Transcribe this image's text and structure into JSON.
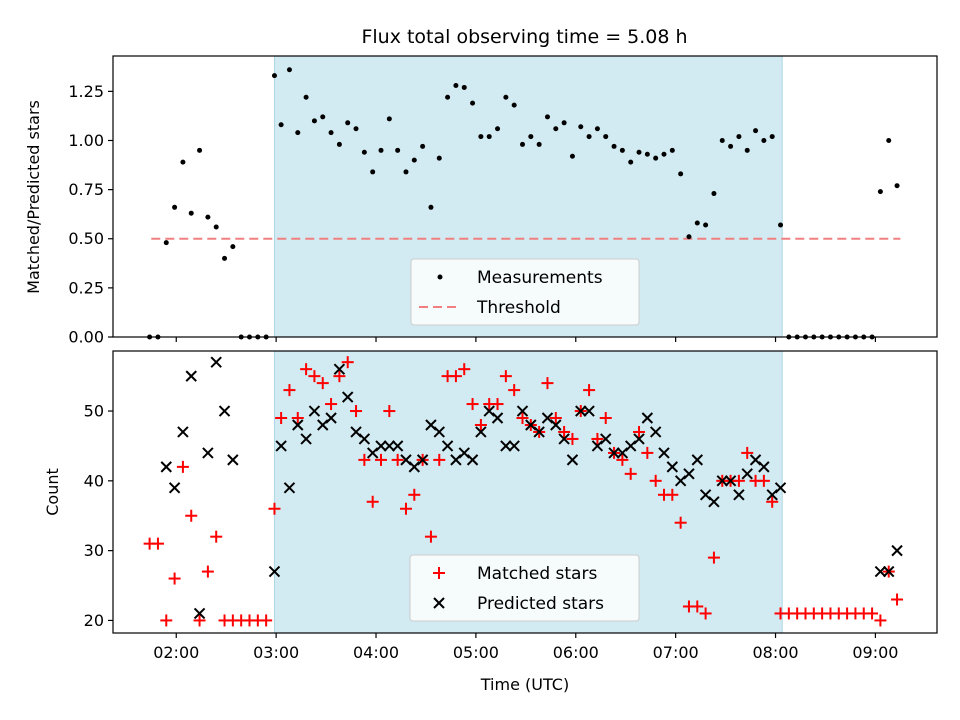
{
  "figure": {
    "title": "Flux total observing time = 5.08 h"
  },
  "colors": {
    "shade": "#add8e6",
    "measurement": "#000000",
    "threshold": "#f08080",
    "matched": "#ff0000",
    "predicted": "#000000"
  },
  "chart_data": [
    {
      "type": "scatter",
      "panel": "top",
      "ylabel": "Matched/Predicted stars",
      "xlabel": "",
      "xlim": [
        "01:22",
        "09:37"
      ],
      "ylim": [
        0,
        1.43
      ],
      "yticks": [
        0.0,
        0.25,
        0.5,
        0.75,
        1.0,
        1.25
      ],
      "ytick_labels": [
        "0.00",
        "0.25",
        "0.50",
        "0.75",
        "1.00",
        "1.25"
      ],
      "shaded_span": [
        "02:59",
        "08:04"
      ],
      "legend": {
        "position": "lower center",
        "entries": [
          "Measurements",
          "Threshold"
        ]
      },
      "threshold": {
        "name": "Threshold",
        "x": [
          "01:45",
          "09:15"
        ],
        "y": 0.5,
        "style": "dashed"
      },
      "series": [
        {
          "name": "Measurements",
          "marker": "dot",
          "x": [
            "01:44",
            "01:49",
            "01:54",
            "01:59",
            "02:04",
            "02:09",
            "02:14",
            "02:19",
            "02:24",
            "02:29",
            "02:34",
            "02:39",
            "02:44",
            "02:49",
            "02:54",
            "02:59",
            "03:03",
            "03:08",
            "03:13",
            "03:18",
            "03:23",
            "03:28",
            "03:33",
            "03:38",
            "03:43",
            "03:48",
            "03:53",
            "03:58",
            "04:03",
            "04:08",
            "04:13",
            "04:18",
            "04:23",
            "04:28",
            "04:33",
            "04:38",
            "04:43",
            "04:48",
            "04:53",
            "04:58",
            "05:03",
            "05:08",
            "05:13",
            "05:18",
            "05:23",
            "05:28",
            "05:33",
            "05:38",
            "05:43",
            "05:48",
            "05:53",
            "05:58",
            "06:03",
            "06:08",
            "06:13",
            "06:18",
            "06:23",
            "06:28",
            "06:33",
            "06:38",
            "06:43",
            "06:48",
            "06:53",
            "06:58",
            "07:03",
            "07:08",
            "07:13",
            "07:18",
            "07:23",
            "07:28",
            "07:33",
            "07:38",
            "07:43",
            "07:48",
            "07:53",
            "07:58",
            "08:03",
            "08:08",
            "08:13",
            "08:18",
            "08:23",
            "08:28",
            "08:33",
            "08:38",
            "08:43",
            "08:48",
            "08:53",
            "08:58",
            "09:03",
            "09:08",
            "09:13"
          ],
          "y": [
            0.0,
            0.0,
            0.48,
            0.66,
            0.89,
            0.63,
            0.95,
            0.61,
            0.56,
            0.4,
            0.46,
            0.0,
            0.0,
            0.0,
            0.0,
            1.33,
            1.08,
            1.36,
            1.04,
            1.22,
            1.1,
            1.12,
            1.04,
            0.98,
            1.09,
            1.06,
            0.94,
            0.84,
            0.95,
            1.11,
            0.95,
            0.84,
            0.9,
            0.97,
            0.66,
            0.91,
            1.22,
            1.28,
            1.27,
            1.19,
            1.02,
            1.02,
            1.06,
            1.22,
            1.18,
            0.98,
            1.02,
            0.98,
            1.12,
            1.06,
            1.09,
            0.92,
            1.07,
            1.02,
            1.06,
            1.02,
            0.97,
            0.95,
            0.89,
            0.94,
            0.93,
            0.91,
            0.93,
            0.95,
            0.83,
            0.51,
            0.58,
            0.57,
            0.73,
            1.0,
            0.97,
            1.02,
            0.95,
            1.05,
            1.0,
            1.02,
            0.57,
            0.0,
            0.0,
            0.0,
            0.0,
            0.0,
            0.0,
            0.0,
            0.0,
            0.0,
            0.0,
            0.0,
            0.74,
            1.0,
            0.77
          ]
        }
      ]
    },
    {
      "type": "scatter",
      "panel": "bottom",
      "ylabel": "Count",
      "xlabel": "Time (UTC)",
      "xlim": [
        "01:22",
        "09:37"
      ],
      "ylim": [
        18.2,
        58.6
      ],
      "yticks": [
        20,
        30,
        40,
        50
      ],
      "xticks": [
        "02:00",
        "03:00",
        "04:00",
        "05:00",
        "06:00",
        "07:00",
        "08:00",
        "09:00"
      ],
      "shaded_span": [
        "02:59",
        "08:04"
      ],
      "legend": {
        "position": "lower center",
        "entries": [
          "Matched stars",
          "Predicted stars"
        ]
      },
      "series": [
        {
          "name": "Matched stars",
          "marker": "plus",
          "x": [
            "01:44",
            "01:49",
            "01:54",
            "01:59",
            "02:04",
            "02:09",
            "02:14",
            "02:19",
            "02:24",
            "02:29",
            "02:34",
            "02:39",
            "02:44",
            "02:49",
            "02:54",
            "02:59",
            "03:03",
            "03:08",
            "03:13",
            "03:18",
            "03:23",
            "03:28",
            "03:33",
            "03:38",
            "03:43",
            "03:48",
            "03:53",
            "03:58",
            "04:03",
            "04:08",
            "04:13",
            "04:18",
            "04:23",
            "04:28",
            "04:33",
            "04:38",
            "04:43",
            "04:48",
            "04:53",
            "04:58",
            "05:03",
            "05:08",
            "05:13",
            "05:18",
            "05:23",
            "05:28",
            "05:33",
            "05:38",
            "05:43",
            "05:48",
            "05:53",
            "05:58",
            "06:03",
            "06:08",
            "06:13",
            "06:18",
            "06:23",
            "06:28",
            "06:33",
            "06:38",
            "06:43",
            "06:48",
            "06:53",
            "06:58",
            "07:03",
            "07:08",
            "07:13",
            "07:18",
            "07:23",
            "07:28",
            "07:33",
            "07:38",
            "07:43",
            "07:48",
            "07:53",
            "07:58",
            "08:03",
            "08:08",
            "08:13",
            "08:18",
            "08:23",
            "08:28",
            "08:33",
            "08:38",
            "08:43",
            "08:48",
            "08:53",
            "08:58",
            "09:03",
            "09:08",
            "09:13"
          ],
          "y": [
            31,
            31,
            20,
            26,
            42,
            35,
            20,
            27,
            32,
            20,
            20,
            20,
            20,
            20,
            20,
            36,
            49,
            53,
            49,
            56,
            55,
            54,
            51,
            55,
            57,
            50,
            43,
            37,
            43,
            50,
            43,
            36,
            38,
            43,
            32,
            43,
            55,
            55,
            56,
            51,
            48,
            51,
            51,
            55,
            53,
            49,
            48,
            47,
            54,
            49,
            47,
            46,
            50,
            53,
            46,
            49,
            44,
            43,
            41,
            47,
            44,
            40,
            38,
            38,
            34,
            22,
            22,
            21,
            29,
            40,
            40,
            40,
            44,
            40,
            40,
            37,
            21,
            21,
            21,
            21,
            21,
            21,
            21,
            21,
            21,
            21,
            21,
            21,
            20,
            27,
            23
          ]
        },
        {
          "name": "Predicted stars",
          "marker": "x",
          "x": [
            "01:54",
            "01:59",
            "02:04",
            "02:09",
            "02:14",
            "02:19",
            "02:24",
            "02:29",
            "02:34",
            "02:59",
            "03:03",
            "03:08",
            "03:13",
            "03:18",
            "03:23",
            "03:28",
            "03:33",
            "03:38",
            "03:43",
            "03:48",
            "03:53",
            "03:58",
            "04:03",
            "04:08",
            "04:13",
            "04:18",
            "04:23",
            "04:28",
            "04:33",
            "04:38",
            "04:43",
            "04:48",
            "04:53",
            "04:58",
            "05:03",
            "05:08",
            "05:13",
            "05:18",
            "05:23",
            "05:28",
            "05:33",
            "05:38",
            "05:43",
            "05:48",
            "05:53",
            "05:58",
            "06:03",
            "06:08",
            "06:13",
            "06:18",
            "06:23",
            "06:28",
            "06:33",
            "06:38",
            "06:43",
            "06:48",
            "06:53",
            "06:58",
            "07:03",
            "07:08",
            "07:13",
            "07:18",
            "07:23",
            "07:28",
            "07:33",
            "07:38",
            "07:43",
            "07:48",
            "07:53",
            "07:58",
            "08:03",
            "09:03",
            "09:08",
            "09:13"
          ],
          "y": [
            42,
            39,
            47,
            55,
            21,
            44,
            57,
            50,
            43,
            27,
            45,
            39,
            48,
            46,
            50,
            48,
            49,
            56,
            52,
            47,
            46,
            44,
            45,
            45,
            45,
            43,
            42,
            43,
            48,
            47,
            45,
            43,
            44,
            43,
            47,
            50,
            49,
            45,
            45,
            50,
            48,
            47,
            49,
            48,
            46,
            43,
            50,
            50,
            45,
            46,
            44,
            44,
            45,
            46,
            49,
            47,
            44,
            42,
            40,
            41,
            43,
            38,
            37,
            40,
            40,
            38,
            41,
            43,
            42,
            38,
            39,
            27,
            27,
            30
          ]
        }
      ]
    }
  ]
}
